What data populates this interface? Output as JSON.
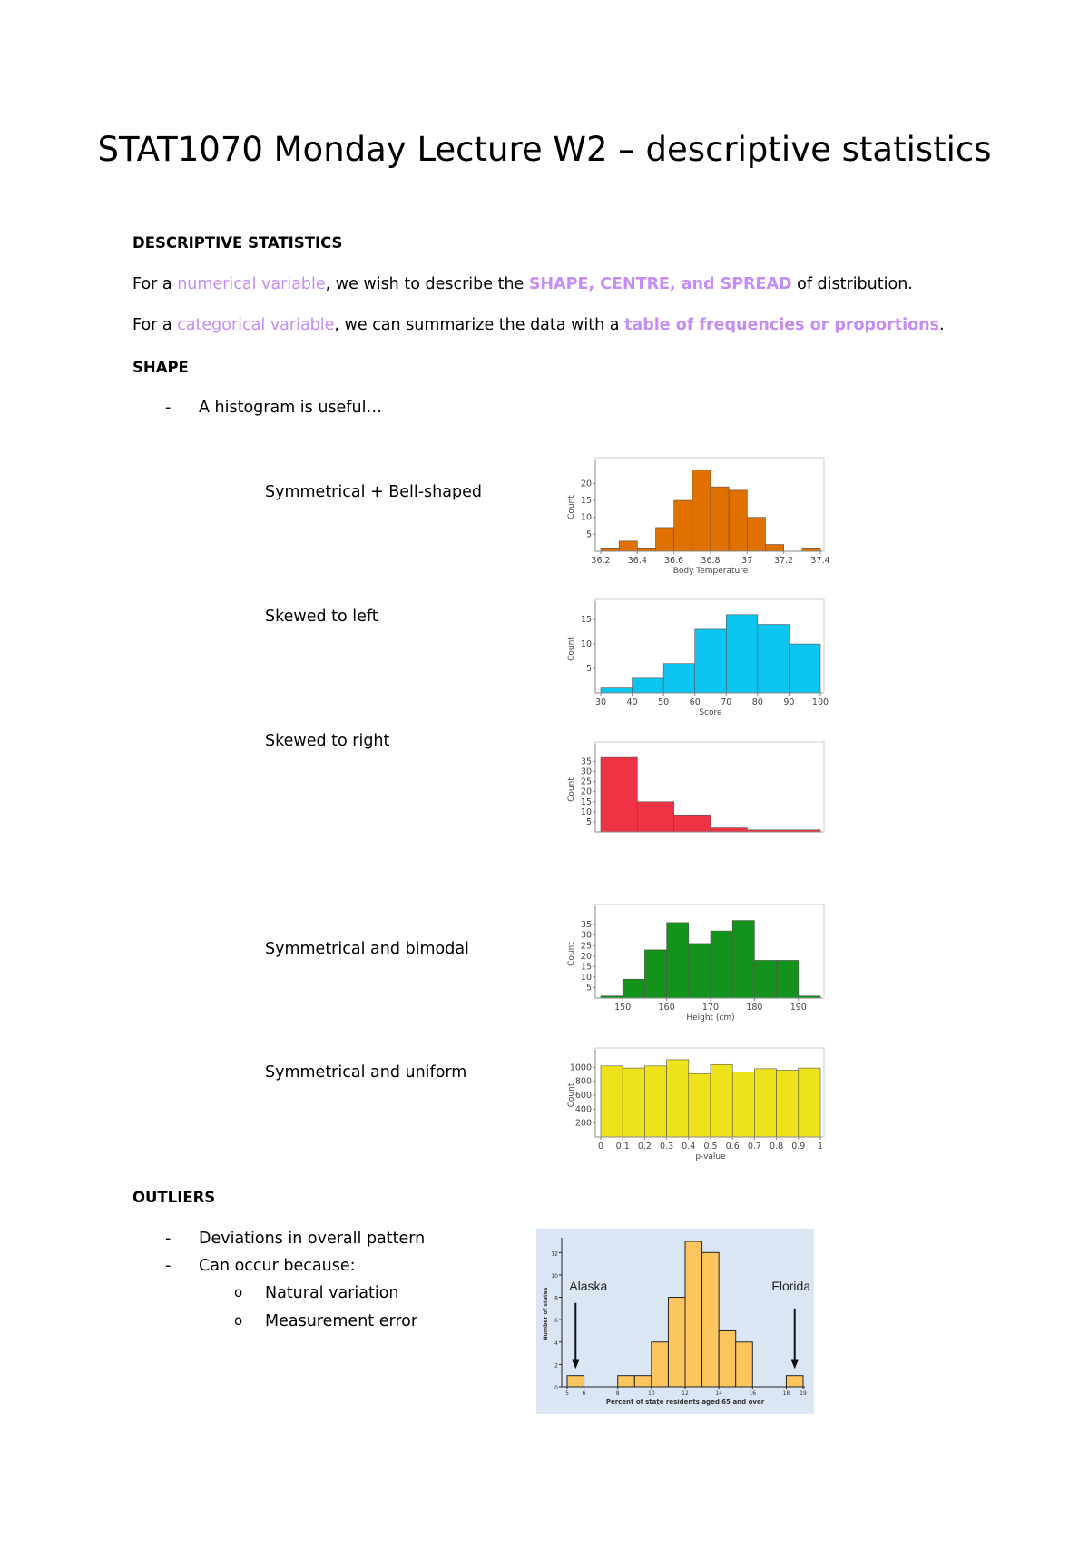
{
  "document": {
    "title": "STAT1070 Monday Lecture W2 – descriptive statistics",
    "sections": {
      "descriptive_heading": "DESCRIPTIVE STATISTICS",
      "line1": {
        "a": "For a ",
        "b": "numerical variable",
        "c": ", we wish to describe the ",
        "d": "SHAPE, CENTRE, and SPREAD",
        "e": " of distribution."
      },
      "line2": {
        "a": "For a ",
        "b": "categorical variable",
        "c": ", we can summarize the data with a ",
        "d": "table of frequencies or proportions",
        "e": "."
      },
      "shape_heading": "SHAPE",
      "shape_bullet": "A histogram is useful…",
      "shape_labels": [
        "Symmetrical + Bell-shaped",
        "Skewed to left",
        "Skewed to right",
        "Symmetrical and bimodal",
        "Symmetrical and uniform"
      ],
      "outliers_heading": "OUTLIERS",
      "outlier_bullets": [
        "Deviations in overall pattern",
        "Can occur because:"
      ],
      "outlier_subbullets": [
        "Natural variation",
        "Measurement error"
      ],
      "dash": "-",
      "sub_marker": "o"
    },
    "accent_color": "#c58cf5"
  },
  "chart_data": [
    {
      "type": "bar",
      "xlabel": "Body Temperature",
      "ylabel": "Count",
      "color": "#e07000",
      "ylim": [
        0,
        26
      ],
      "xlim": [
        36.2,
        37.4
      ],
      "yticks": [
        5,
        10,
        15,
        20
      ],
      "xticks": [
        36.2,
        36.4,
        36.6,
        36.8,
        37,
        37.2,
        37.4
      ],
      "xtick_labels": [
        "36.2",
        "36.4",
        "36.6",
        "36.8",
        "37",
        "37.2",
        "37.4"
      ],
      "bins": [
        [
          36.2,
          36.3,
          1
        ],
        [
          36.3,
          36.4,
          3
        ],
        [
          36.4,
          36.5,
          1
        ],
        [
          36.5,
          36.6,
          7
        ],
        [
          36.6,
          36.7,
          15
        ],
        [
          36.7,
          36.8,
          24
        ],
        [
          36.8,
          36.9,
          19
        ],
        [
          36.9,
          37.0,
          18
        ],
        [
          37.0,
          37.1,
          10
        ],
        [
          37.1,
          37.2,
          2
        ],
        [
          37.3,
          37.4,
          1
        ]
      ]
    },
    {
      "type": "bar",
      "xlabel": "Score",
      "ylabel": "Count",
      "color": "#0bc4f0",
      "ylim": [
        0,
        18
      ],
      "xlim": [
        30,
        100
      ],
      "yticks": [
        5,
        10,
        15
      ],
      "xticks": [
        30,
        40,
        50,
        60,
        70,
        80,
        90,
        100
      ],
      "xtick_labels": [
        "30",
        "40",
        "50",
        "60",
        "70",
        "80",
        "90",
        "100"
      ],
      "bins": [
        [
          30,
          40,
          1
        ],
        [
          40,
          50,
          3
        ],
        [
          50,
          60,
          6
        ],
        [
          60,
          70,
          13
        ],
        [
          70,
          80,
          16
        ],
        [
          80,
          90,
          14
        ],
        [
          90,
          100,
          10
        ]
      ]
    },
    {
      "type": "bar",
      "xlabel": "",
      "ylabel": "Count",
      "color": "#ee3344",
      "ylim": [
        0,
        42
      ],
      "xlim": [
        0,
        6
      ],
      "yticks": [
        5,
        10,
        15,
        20,
        25,
        30,
        35
      ],
      "xticks": [],
      "xtick_labels": [],
      "bins": [
        [
          0,
          1,
          37
        ],
        [
          1,
          2,
          15
        ],
        [
          2,
          3,
          8
        ],
        [
          3,
          4,
          2
        ],
        [
          4,
          5,
          1
        ],
        [
          5,
          6,
          1
        ]
      ]
    },
    {
      "type": "bar",
      "xlabel": "Height (cm)",
      "ylabel": "Count",
      "color": "#14931c",
      "ylim": [
        0,
        42
      ],
      "xlim": [
        145,
        195
      ],
      "yticks": [
        5,
        10,
        15,
        20,
        25,
        30,
        35
      ],
      "xticks": [
        150,
        160,
        170,
        180,
        190
      ],
      "xtick_labels": [
        "150",
        "160",
        "170",
        "180",
        "190"
      ],
      "bins": [
        [
          145,
          150,
          1
        ],
        [
          150,
          155,
          9
        ],
        [
          155,
          160,
          23
        ],
        [
          160,
          165,
          36
        ],
        [
          165,
          170,
          26
        ],
        [
          170,
          175,
          32
        ],
        [
          175,
          180,
          37
        ],
        [
          180,
          185,
          18
        ],
        [
          185,
          190,
          18
        ],
        [
          190,
          195,
          1
        ]
      ]
    },
    {
      "type": "bar",
      "xlabel": "p-value",
      "ylabel": "Count",
      "color": "#eee21a",
      "ylim": [
        0,
        1200
      ],
      "xlim": [
        0,
        1
      ],
      "yticks": [
        200,
        400,
        600,
        800,
        1000
      ],
      "xticks": [
        0,
        0.1,
        0.2,
        0.3,
        0.4,
        0.5,
        0.6,
        0.7,
        0.8,
        0.9,
        1
      ],
      "xtick_labels": [
        "0",
        "0.1",
        "0.2",
        "0.3",
        "0.4",
        "0.5",
        "0.6",
        "0.7",
        "0.8",
        "0.9",
        "1"
      ],
      "bins": [
        [
          0,
          0.1,
          1020
        ],
        [
          0.1,
          0.2,
          990
        ],
        [
          0.2,
          0.3,
          1020
        ],
        [
          0.3,
          0.4,
          1110
        ],
        [
          0.4,
          0.5,
          910
        ],
        [
          0.5,
          0.6,
          1040
        ],
        [
          0.6,
          0.7,
          930
        ],
        [
          0.7,
          0.8,
          980
        ],
        [
          0.8,
          0.9,
          960
        ],
        [
          0.9,
          1,
          990
        ]
      ]
    },
    {
      "type": "bar",
      "xlabel": "Percent of state residents aged 65 and over",
      "ylabel": "Number of states",
      "color": "#fcc55e",
      "background": "#dbe6f5",
      "ylim": [
        0,
        13
      ],
      "xlim": [
        5,
        19
      ],
      "yticks": [
        0,
        2,
        4,
        6,
        8,
        10,
        12
      ],
      "xticks": [
        5,
        6,
        8,
        10,
        12,
        14,
        16,
        18,
        19
      ],
      "xtick_labels": [
        "5",
        "6",
        "8",
        "10",
        "12",
        "14",
        "16",
        "18",
        "19"
      ],
      "bins": [
        [
          5,
          6,
          1
        ],
        [
          8,
          9,
          1
        ],
        [
          9,
          10,
          1
        ],
        [
          10,
          11,
          4
        ],
        [
          11,
          12,
          8
        ],
        [
          12,
          13,
          13
        ],
        [
          13,
          14,
          12
        ],
        [
          14,
          15,
          5
        ],
        [
          15,
          16,
          4
        ],
        [
          18,
          19,
          1
        ]
      ],
      "annotations": [
        {
          "text": "Alaska",
          "x": 5.5
        },
        {
          "text": "Florida",
          "x": 18.5
        }
      ]
    }
  ]
}
